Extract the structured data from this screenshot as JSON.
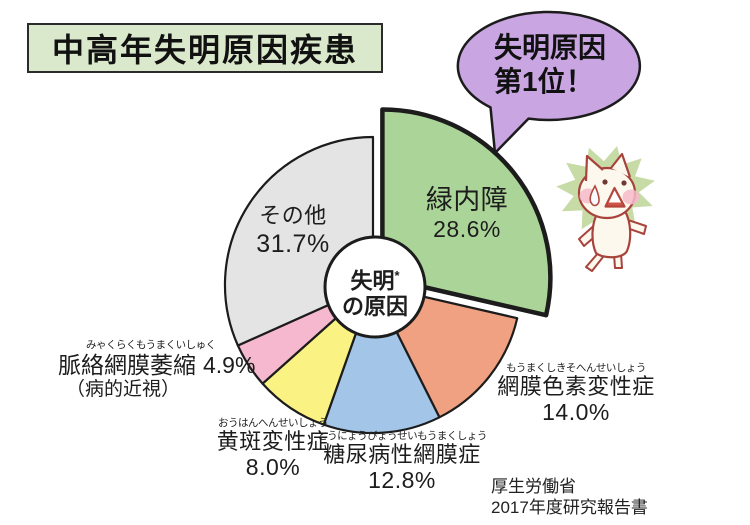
{
  "header": {
    "title": "中高年失明原因疾患"
  },
  "callout": {
    "line1": "失明原因",
    "line2": "第1位！"
  },
  "center_label": {
    "line1": "失明",
    "sup": "*",
    "line2": "の原因"
  },
  "source": {
    "line1": "厚生労働省",
    "line2": "2017年度研究報告書"
  },
  "colors": {
    "title_box_bg": "#dae8cb",
    "callout_bg": "#c9a5e2",
    "outline": "#1c1c1c",
    "glaucoma_green": "#abd498",
    "salmon": "#f0a181",
    "light_blue": "#a3c6e8",
    "yellow": "#fbf284",
    "pink": "#f6b8ce",
    "gray": "#e4e4e4"
  },
  "chart_data": {
    "type": "pie",
    "title": "中高年失明原因疾患",
    "center_label": "失明*の原因",
    "annotation": "失明原因第1位！",
    "source": "厚生労働省 2017年度研究報告書",
    "start_angle_deg": 0,
    "direction": "clockwise",
    "donut": true,
    "legend_position": "none",
    "segments": [
      {
        "name": "glaucoma",
        "label": "緑内障",
        "furigana": "",
        "value": 28.6,
        "percent_label": "28.6%",
        "color": "#abd498",
        "exploded": true
      },
      {
        "name": "retinitis-pigmentosa",
        "label": "網膜色素変性症",
        "furigana": "もうまくしきそへんせいしょう",
        "value": 14.0,
        "percent_label": "14.0%",
        "color": "#f0a181",
        "exploded": false
      },
      {
        "name": "diabetic-retinopathy",
        "label": "糖尿病性網膜症",
        "furigana": "とうにょうびょうせいもうまくしょう",
        "value": 12.8,
        "percent_label": "12.8%",
        "color": "#a3c6e8",
        "exploded": false
      },
      {
        "name": "macular-degeneration",
        "label": "黄斑変性症",
        "furigana": "おうはんへんせいしょう",
        "value": 8.0,
        "percent_label": "8.0%",
        "color": "#fbf284",
        "exploded": false
      },
      {
        "name": "chorioretinal-atrophy",
        "label": "脈絡網膜萎縮",
        "furigana": "みゃくらくもうまくいしゅく",
        "note": "（病的近視）",
        "value": 4.9,
        "percent_label": "4.9%",
        "color": "#f6b8ce",
        "exploded": false
      },
      {
        "name": "others",
        "label": "その他",
        "furigana": "",
        "value": 31.7,
        "percent_label": "31.7%",
        "color": "#e4e4e4",
        "exploded": false
      }
    ]
  }
}
